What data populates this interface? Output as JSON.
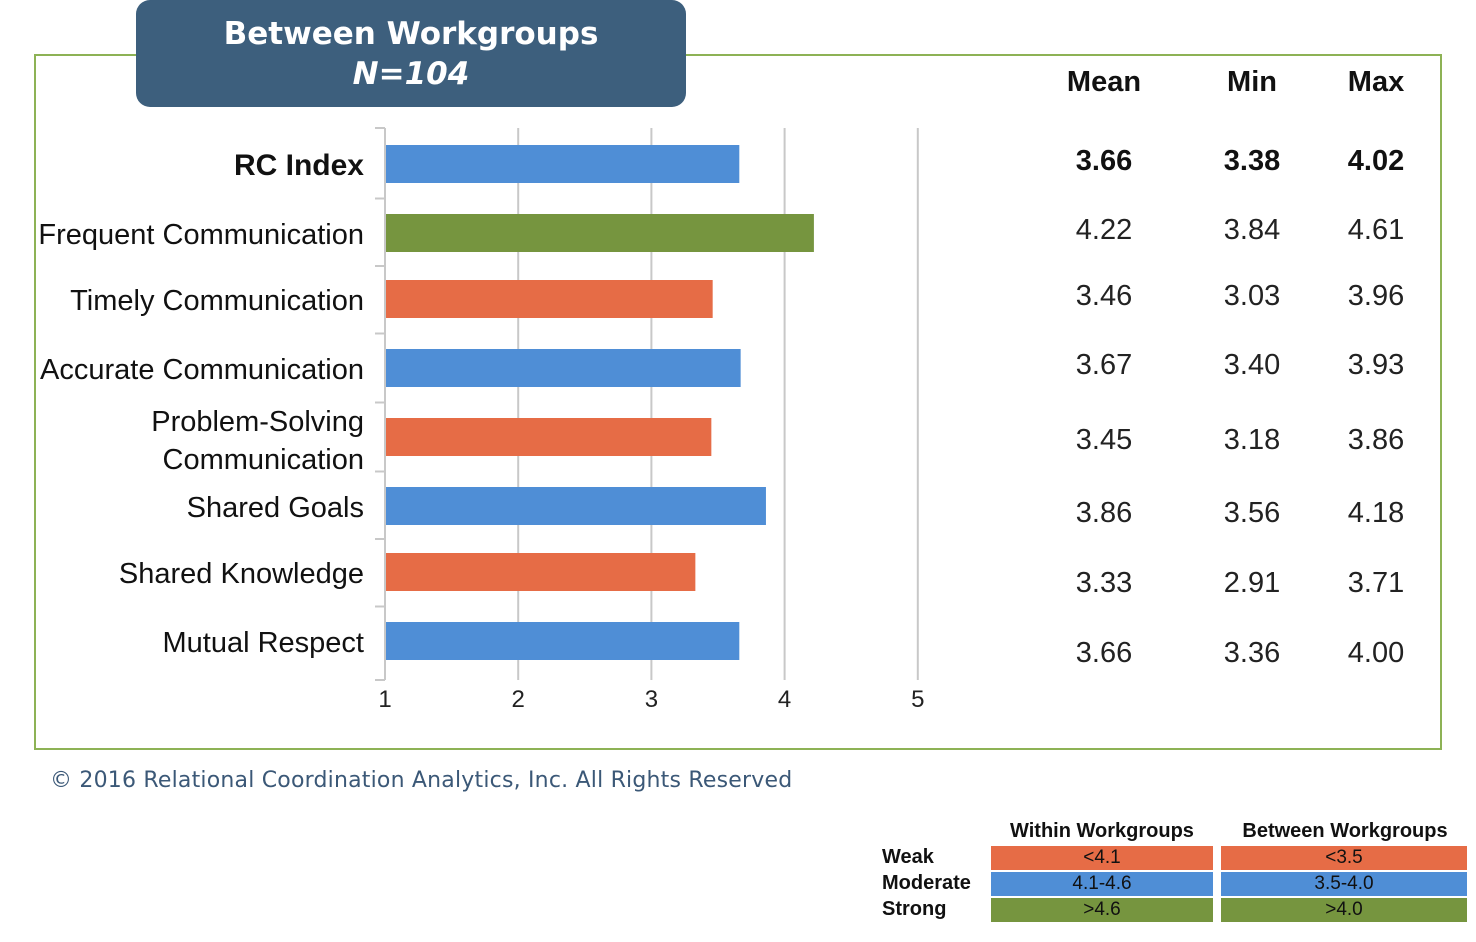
{
  "title": {
    "line1": "Between Workgroups",
    "line2": "N=104"
  },
  "chart_data": {
    "type": "bar",
    "orientation": "horizontal",
    "categories": [
      "RC Index",
      "Frequent Communication",
      "Timely Communication",
      "Accurate Communication",
      "Problem-Solving Communication",
      "Shared Goals",
      "Shared Knowledge",
      "Mutual Respect"
    ],
    "category_lines": [
      [
        "RC Index"
      ],
      [
        "Frequent Communication"
      ],
      [
        "Timely Communication"
      ],
      [
        "Accurate Communication"
      ],
      [
        "Problem-Solving",
        "Communication"
      ],
      [
        "Shared Goals"
      ],
      [
        "Shared Knowledge"
      ],
      [
        "Mutual Respect"
      ]
    ],
    "values": [
      3.66,
      4.22,
      3.46,
      3.67,
      3.45,
      3.86,
      3.33,
      3.66
    ],
    "bar_colors": [
      "#4f8ed6",
      "#76953f",
      "#e66c46",
      "#4f8ed6",
      "#e66c46",
      "#4f8ed6",
      "#e66c46",
      "#4f8ed6"
    ],
    "xlim": [
      1,
      5
    ],
    "xticks": [
      "1",
      "2",
      "3",
      "4",
      "5"
    ],
    "grid": "vertical"
  },
  "stats": {
    "headers": [
      "Mean",
      "Min",
      "Max"
    ],
    "rows": [
      [
        "3.66",
        "3.38",
        "4.02"
      ],
      [
        "4.22",
        "3.84",
        "4.61"
      ],
      [
        "3.46",
        "3.03",
        "3.96"
      ],
      [
        "3.67",
        "3.40",
        "3.93"
      ],
      [
        "3.45",
        "3.18",
        "3.86"
      ],
      [
        "3.86",
        "3.56",
        "4.18"
      ],
      [
        "3.33",
        "2.91",
        "3.71"
      ],
      [
        "3.66",
        "3.36",
        "4.00"
      ]
    ]
  },
  "copyright": "© 2016 Relational Coordination Analytics, Inc. All Rights Reserved",
  "legend": {
    "columns": [
      "Within Workgroups",
      "Between Workgroups"
    ],
    "rows": [
      {
        "label": "Weak",
        "within": "<4.1",
        "between": "<3.5",
        "color": "#e66c46"
      },
      {
        "label": "Moderate",
        "within": "4.1-4.6",
        "between": "3.5-4.0",
        "color": "#4f8ed6"
      },
      {
        "label": "Strong",
        "within": ">4.6",
        "between": ">4.0",
        "color": "#76953f"
      }
    ]
  },
  "colors": {
    "frame_border": "#8db255",
    "title_bg": "#3d5f7d",
    "gridline": "#c8c8c8"
  }
}
